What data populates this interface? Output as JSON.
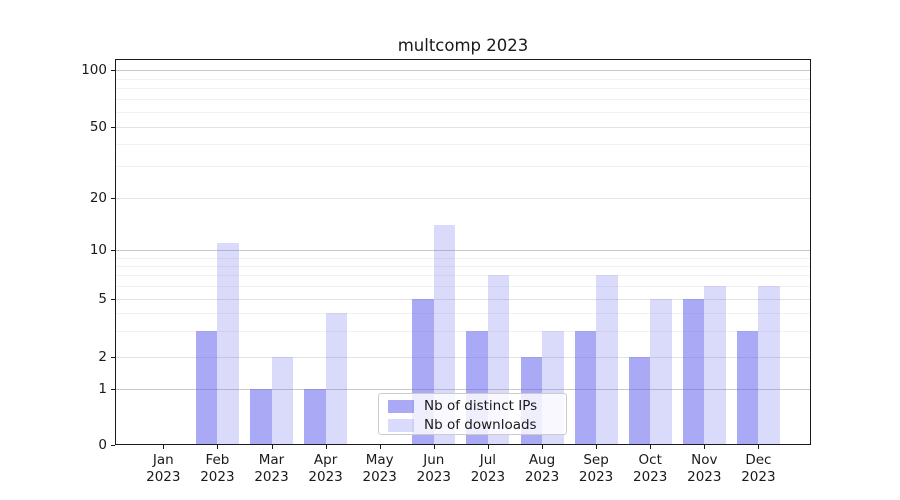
{
  "chart_data": {
    "type": "bar",
    "title": "multcomp 2023",
    "xlabel": "",
    "ylabel": "",
    "yscale": "symlog",
    "ylim": [
      0,
      115
    ],
    "grid": true,
    "categories": [
      "Jan 2023",
      "Feb 2023",
      "Mar 2023",
      "Apr 2023",
      "May 2023",
      "Jun 2023",
      "Jul 2023",
      "Aug 2023",
      "Sep 2023",
      "Oct 2023",
      "Nov 2023",
      "Dec 2023"
    ],
    "series": [
      {
        "name": "Nb of distinct IPs",
        "color": "rgba(102,102,238,0.56)",
        "values": [
          0,
          3,
          1,
          1,
          0,
          5,
          3,
          2,
          3,
          2,
          5,
          3
        ]
      },
      {
        "name": "Nb of downloads",
        "color": "rgba(102,102,238,0.24)",
        "values": [
          0,
          11,
          2,
          4,
          0,
          14,
          7,
          3,
          7,
          5,
          6,
          6
        ]
      }
    ],
    "yticks": [
      0,
      1,
      2,
      5,
      10,
      20,
      50,
      100
    ],
    "minor_gridlines": [
      3,
      4,
      6,
      7,
      8,
      9,
      30,
      40,
      60,
      70,
      80,
      90
    ],
    "legend": {
      "position": "lower center",
      "labels": [
        "Nb of distinct IPs",
        "Nb of downloads"
      ]
    }
  },
  "colors": {
    "major_grid": "#c9c9c9",
    "medium_grid": "#e3e3e3",
    "minor_grid": "#f1f1f1",
    "axis": "#1a1a1a"
  }
}
